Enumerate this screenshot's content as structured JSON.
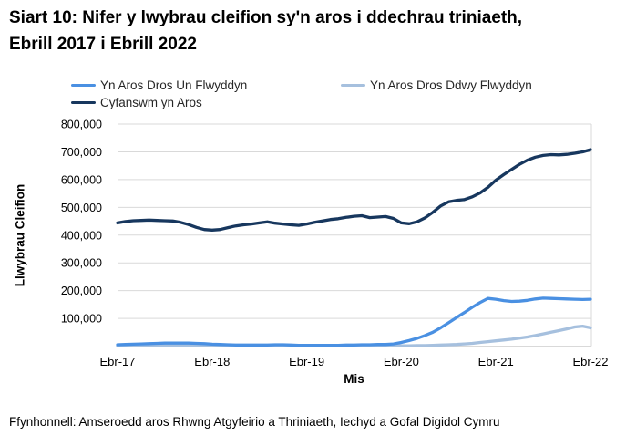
{
  "page": {
    "title": "Siart 10: Nifer y lwybrau cleifion sy'n aros i ddechrau triniaeth, Ebrill 2017 i Ebrill 2022",
    "source": "Ffynhonnell: Amseroedd aros Rhwng Atgyfeirio a Thriniaeth, Iechyd a Gofal Digidol Cymru"
  },
  "axes": {
    "y_title": "Llwybrau Cleifion",
    "x_title": "Mis"
  },
  "legend": {
    "items": [
      {
        "label": "Yn Aros Dros Un Flwyddyn",
        "color": "#4a90e2"
      },
      {
        "label": "Yn Aros Dros Ddwy Flwyddyn",
        "color": "#a6c0de"
      },
      {
        "label": "Cyfanswm yn Aros",
        "color": "#17375e"
      }
    ]
  },
  "chart_data": {
    "type": "line",
    "title": "Siart 10: Nifer y lwybrau cleifion sy'n aros i ddechrau triniaeth, Ebrill 2017 i Ebrill 2022",
    "xlabel": "Mis",
    "ylabel": "Llwybrau Cleifion",
    "ylim": [
      0,
      800000
    ],
    "ytick_step": 100000,
    "ytick_labels": [
      "-",
      "100,000",
      "200,000",
      "300,000",
      "400,000",
      "500,000",
      "600,000",
      "700,000",
      "800,000"
    ],
    "grid": "horizontal",
    "legend_position": "top-left-two-columns",
    "n_points": 61,
    "x_start": "Ebr-17",
    "x_end": "Ebr-22",
    "x_frequency": "monthly",
    "x_tick_positions": [
      0,
      12,
      24,
      36,
      48,
      60
    ],
    "x_tick_labels": [
      "Ebr-17",
      "Ebr-18",
      "Ebr-19",
      "Ebr-20",
      "Ebr-21",
      "Ebr-22"
    ],
    "series": [
      {
        "id": "over-one-year",
        "name": "Yn Aros Dros Un Flwyddyn",
        "color": "#4a90e2",
        "z": 2,
        "values": [
          5000,
          6000,
          7000,
          8000,
          9000,
          10000,
          11000,
          11000,
          11000,
          11000,
          10000,
          9000,
          7000,
          6000,
          5000,
          4000,
          4000,
          4000,
          4000,
          4000,
          5000,
          5000,
          4000,
          3000,
          3000,
          3000,
          3000,
          3000,
          3000,
          4000,
          4000,
          5000,
          5000,
          6000,
          6000,
          8000,
          13000,
          20000,
          28000,
          38000,
          50000,
          66000,
          84000,
          103000,
          121000,
          140000,
          157000,
          172000,
          169000,
          164000,
          161000,
          162000,
          165000,
          170000,
          173000,
          172000,
          171000,
          170000,
          169000,
          168000,
          169000
        ]
      },
      {
        "id": "over-two-years",
        "name": "Yn Aros Dros Ddwy Flwyddyn",
        "color": "#a6c0de",
        "z": 1,
        "values": [
          500,
          500,
          500,
          500,
          500,
          500,
          500,
          500,
          500,
          500,
          500,
          500,
          500,
          500,
          500,
          500,
          500,
          500,
          500,
          500,
          500,
          500,
          500,
          500,
          500,
          500,
          500,
          500,
          500,
          500,
          500,
          500,
          500,
          500,
          500,
          600,
          1000,
          1000,
          2000,
          2000,
          3000,
          4000,
          5000,
          6000,
          8000,
          10000,
          13000,
          16000,
          19000,
          22000,
          25000,
          29000,
          33000,
          38000,
          44000,
          50000,
          56000,
          62000,
          69000,
          72000,
          66000
        ]
      },
      {
        "id": "total-waiting",
        "name": "Cyfanswm yn Aros",
        "color": "#17375e",
        "z": 3,
        "values": [
          444000,
          449000,
          452000,
          453000,
          454000,
          453000,
          452000,
          451000,
          446000,
          438000,
          428000,
          420000,
          418000,
          420000,
          427000,
          433000,
          437000,
          440000,
          444000,
          448000,
          443000,
          440000,
          437000,
          435000,
          440000,
          446000,
          451000,
          456000,
          459000,
          464000,
          468000,
          470000,
          463000,
          465000,
          467000,
          460000,
          444000,
          441000,
          448000,
          462000,
          482000,
          505000,
          520000,
          525000,
          528000,
          538000,
          552000,
          572000,
          598000,
          618000,
          637000,
          655000,
          670000,
          681000,
          687000,
          690000,
          689000,
          691000,
          695000,
          700000,
          708000
        ]
      }
    ]
  }
}
